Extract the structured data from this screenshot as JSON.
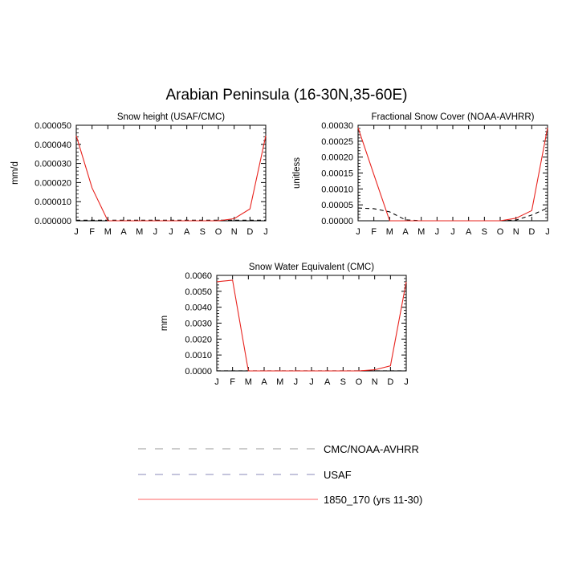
{
  "page": {
    "title": "Arabian Peninsula (16-30N,35-60E)"
  },
  "legend": {
    "placement": "bottom-center",
    "entries": [
      {
        "label": "CMC/NOAA-AVHRR",
        "color": "#9a9a9a",
        "style": "dashed"
      },
      {
        "label": "USAF",
        "color": "#8a8ab8",
        "style": "dashed"
      },
      {
        "label": "1850_170 (yrs 11-30)",
        "color": "#ff6666",
        "style": "solid"
      }
    ]
  },
  "chart_data": [
    {
      "type": "line",
      "title": "Snow height (USAF/CMC)",
      "xlabel": "",
      "ylabel": "mm/d",
      "categories": [
        "J",
        "F",
        "M",
        "A",
        "M",
        "J",
        "J",
        "A",
        "S",
        "O",
        "N",
        "D",
        "J"
      ],
      "ylim": [
        0,
        5e-05
      ],
      "yticks": [
        "0.000000",
        "0.000010",
        "0.000020",
        "0.000030",
        "0.000040",
        "0.000050"
      ],
      "ytick_values": [
        0,
        1e-05,
        2e-05,
        3e-05,
        4e-05,
        5e-05
      ],
      "grid": false,
      "series": [
        {
          "name": "1850_170 (yrs 11-30)",
          "color": "#e8231e",
          "dash": "",
          "values": [
            4.45e-05,
            1.72e-05,
            0,
            0,
            0,
            0,
            0,
            0,
            0,
            0,
            1.1e-06,
            6.2e-06,
            4.45e-05
          ]
        },
        {
          "name": "USAF",
          "color": "#000000",
          "dash": "5,4",
          "values": [
            3e-07,
            3e-07,
            3e-07,
            3e-07,
            3e-07,
            3e-07,
            3e-07,
            3e-07,
            3e-07,
            3e-07,
            3e-07,
            3e-07,
            3e-07
          ]
        }
      ]
    },
    {
      "type": "line",
      "title": "Fractional Snow Cover (NOAA-AVHRR)",
      "xlabel": "",
      "ylabel": "unitless",
      "categories": [
        "J",
        "F",
        "M",
        "A",
        "M",
        "J",
        "J",
        "A",
        "S",
        "O",
        "N",
        "D",
        "J"
      ],
      "ylim": [
        0,
        0.0003
      ],
      "yticks": [
        "0.00000",
        "0.00005",
        "0.00010",
        "0.00015",
        "0.00020",
        "0.00025",
        "0.00030"
      ],
      "ytick_values": [
        0,
        5e-05,
        0.0001,
        0.00015,
        0.0002,
        0.00025,
        0.0003
      ],
      "grid": false,
      "series": [
        {
          "name": "1850_170 (yrs 11-30)",
          "color": "#e8231e",
          "dash": "",
          "values": [
            0.000292,
            0.000145,
            0,
            0,
            0,
            0,
            0,
            0,
            0,
            0,
            8e-06,
            3.2e-05,
            0.000292
          ]
        },
        {
          "name": "CMC/NOAA-AVHRR",
          "color": "#000000",
          "dash": "5,4",
          "values": [
            4e-05,
            3.8e-05,
            2.8e-05,
            3e-06,
            0,
            0,
            0,
            0,
            0,
            0,
            2e-06,
            1.8e-05,
            4e-05
          ]
        }
      ]
    },
    {
      "type": "line",
      "title": "Snow Water Equivalent (CMC)",
      "xlabel": "",
      "ylabel": "mm",
      "categories": [
        "J",
        "F",
        "M",
        "A",
        "M",
        "J",
        "J",
        "A",
        "S",
        "O",
        "N",
        "D",
        "J"
      ],
      "ylim": [
        0,
        0.006
      ],
      "yticks": [
        "0.0000",
        "0.0010",
        "0.0020",
        "0.0030",
        "0.0040",
        "0.0050",
        "0.0060"
      ],
      "ytick_values": [
        0,
        0.001,
        0.002,
        0.003,
        0.004,
        0.005,
        0.006
      ],
      "grid": false,
      "series": [
        {
          "name": "1850_170 (yrs 11-30)",
          "color": "#e8231e",
          "dash": "",
          "values": [
            0.0056,
            0.0057,
            0,
            0,
            0,
            0,
            0,
            0,
            0,
            0,
            7e-05,
            0.00032,
            0.0056
          ]
        },
        {
          "name": "CMC/NOAA-AVHRR",
          "color": "#000000",
          "dash": "5,4",
          "values": [
            5e-06,
            5e-06,
            5e-06,
            5e-06,
            5e-06,
            5e-06,
            5e-06,
            5e-06,
            5e-06,
            5e-06,
            5e-06,
            5e-06,
            5e-06
          ]
        }
      ]
    }
  ]
}
